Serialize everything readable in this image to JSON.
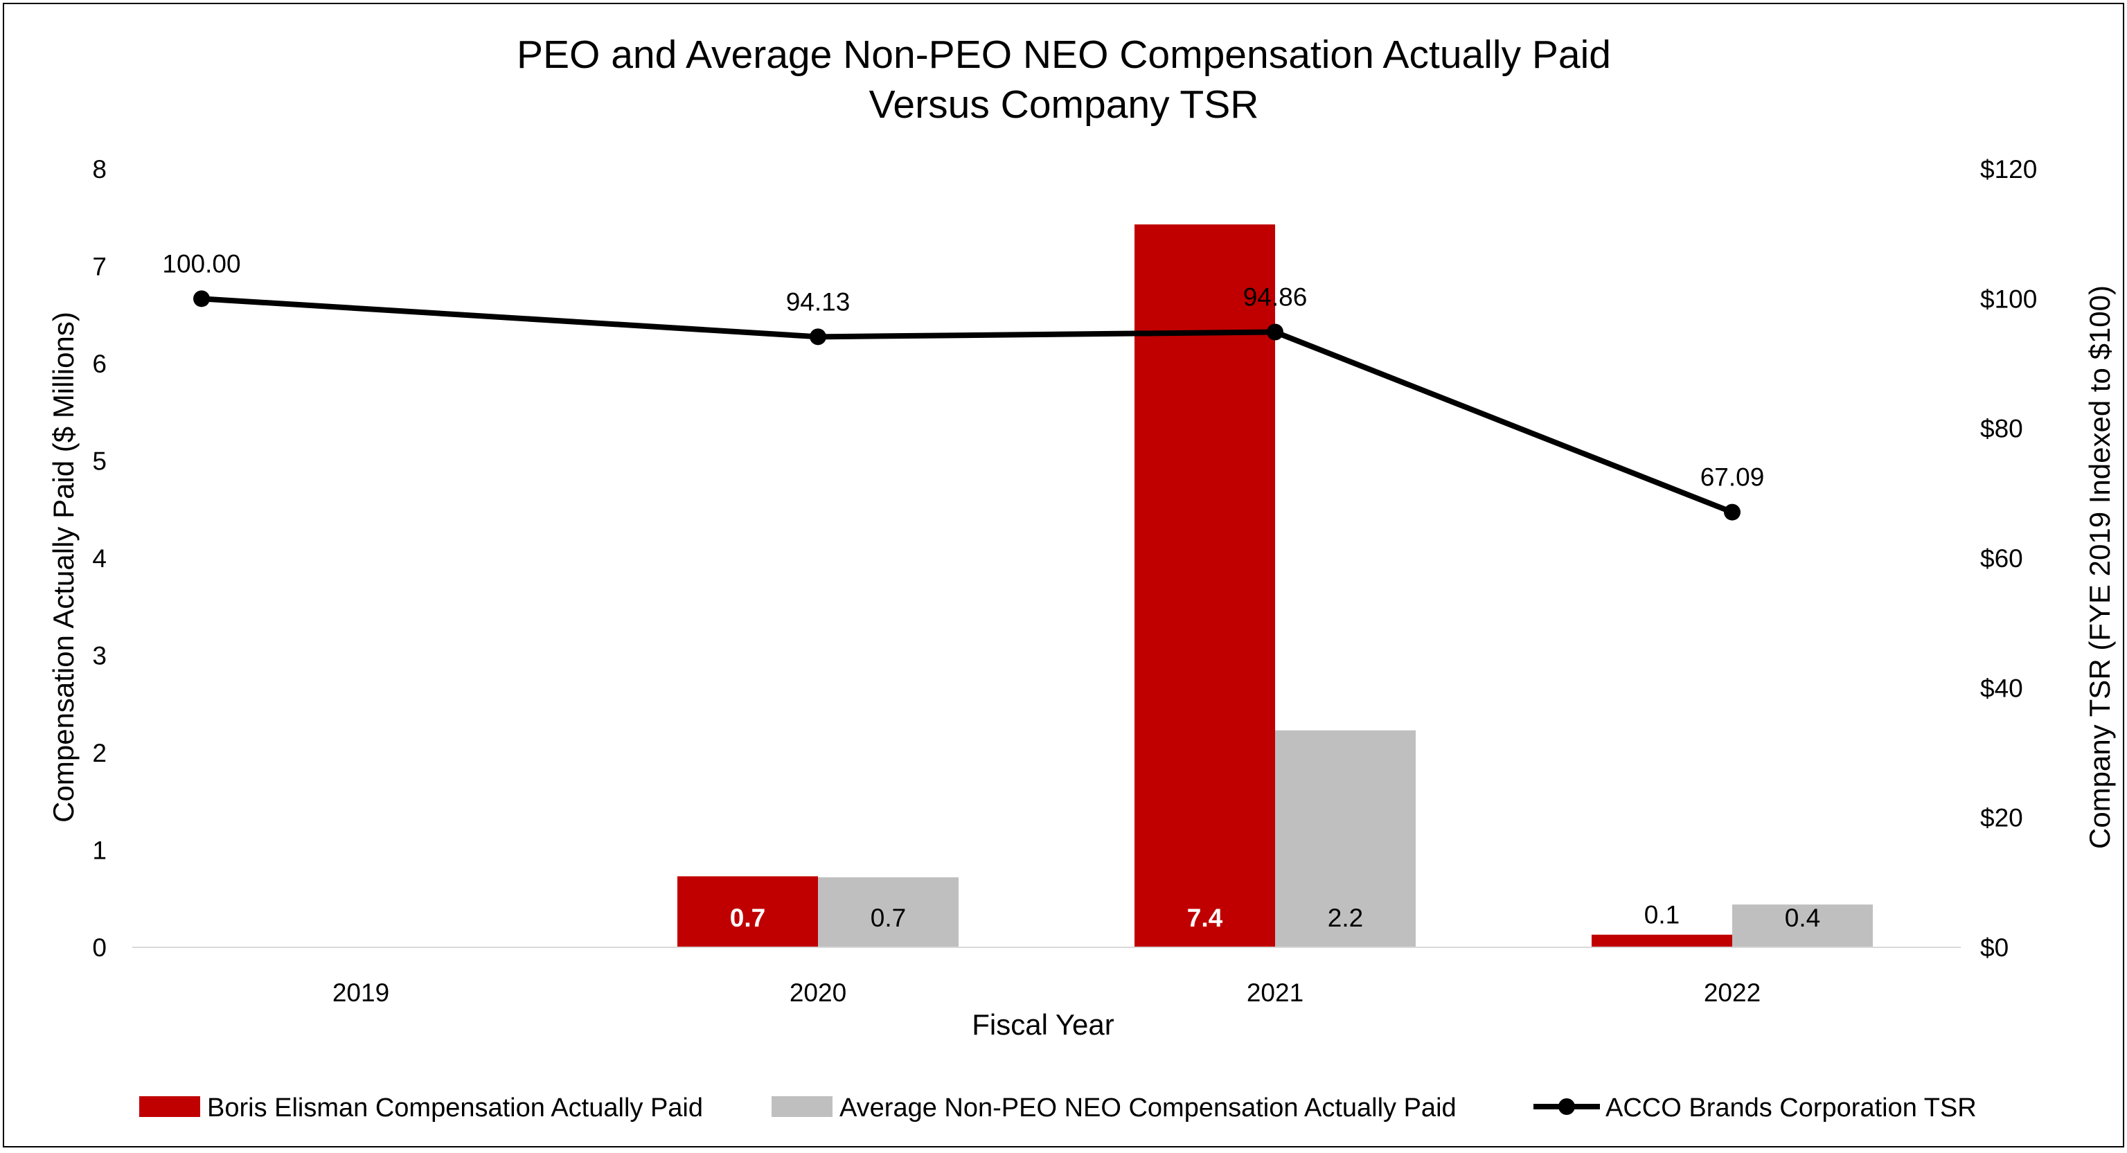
{
  "chart_data": {
    "type": "bar",
    "title": [
      "PEO and Average Non-PEO NEO Compensation Actually Paid",
      "Versus Company TSR"
    ],
    "xlabel": "Fiscal Year",
    "ylabel": "Compensation Actually Paid ($ Millions)",
    "y2label": "Company TSR (FYE 2019 Indexed to $100)",
    "categories": [
      "2019",
      "2020",
      "2021",
      "2022"
    ],
    "ylim": [
      0,
      8
    ],
    "y_ticks": [
      "0",
      "1",
      "2",
      "3",
      "4",
      "5",
      "6",
      "7",
      "8"
    ],
    "y2lim": [
      0,
      120
    ],
    "y2_ticks": [
      "$0",
      "$20",
      "$40",
      "$60",
      "$80",
      "$100",
      "$120"
    ],
    "grid": false,
    "legend_position": "bottom",
    "series": [
      {
        "name": "Boris Elisman Compensation Actually Paid",
        "kind": "bar",
        "axis": "left",
        "color": "#C00000",
        "values": [
          null,
          0.73,
          7.43,
          0.13
        ],
        "labels": [
          null,
          "0.7",
          "7.4",
          "0.1"
        ],
        "label_style": [
          "",
          "bold-white",
          "bold-white",
          "above"
        ]
      },
      {
        "name": "Average Non-PEO NEO Compensation Actually Paid",
        "kind": "bar",
        "axis": "left",
        "color": "#BFBFBF",
        "values": [
          null,
          0.72,
          2.23,
          0.44
        ],
        "labels": [
          null,
          "0.7",
          "2.2",
          "0.4"
        ],
        "label_style": [
          "",
          "inside",
          "inside",
          "inside"
        ]
      },
      {
        "name": "ACCO Brands Corporation TSR",
        "kind": "line",
        "axis": "right",
        "color": "#000000",
        "values": [
          100.0,
          94.13,
          94.86,
          67.09
        ],
        "labels": [
          "100.00",
          "94.13",
          "94.86",
          "67.09"
        ]
      }
    ]
  }
}
